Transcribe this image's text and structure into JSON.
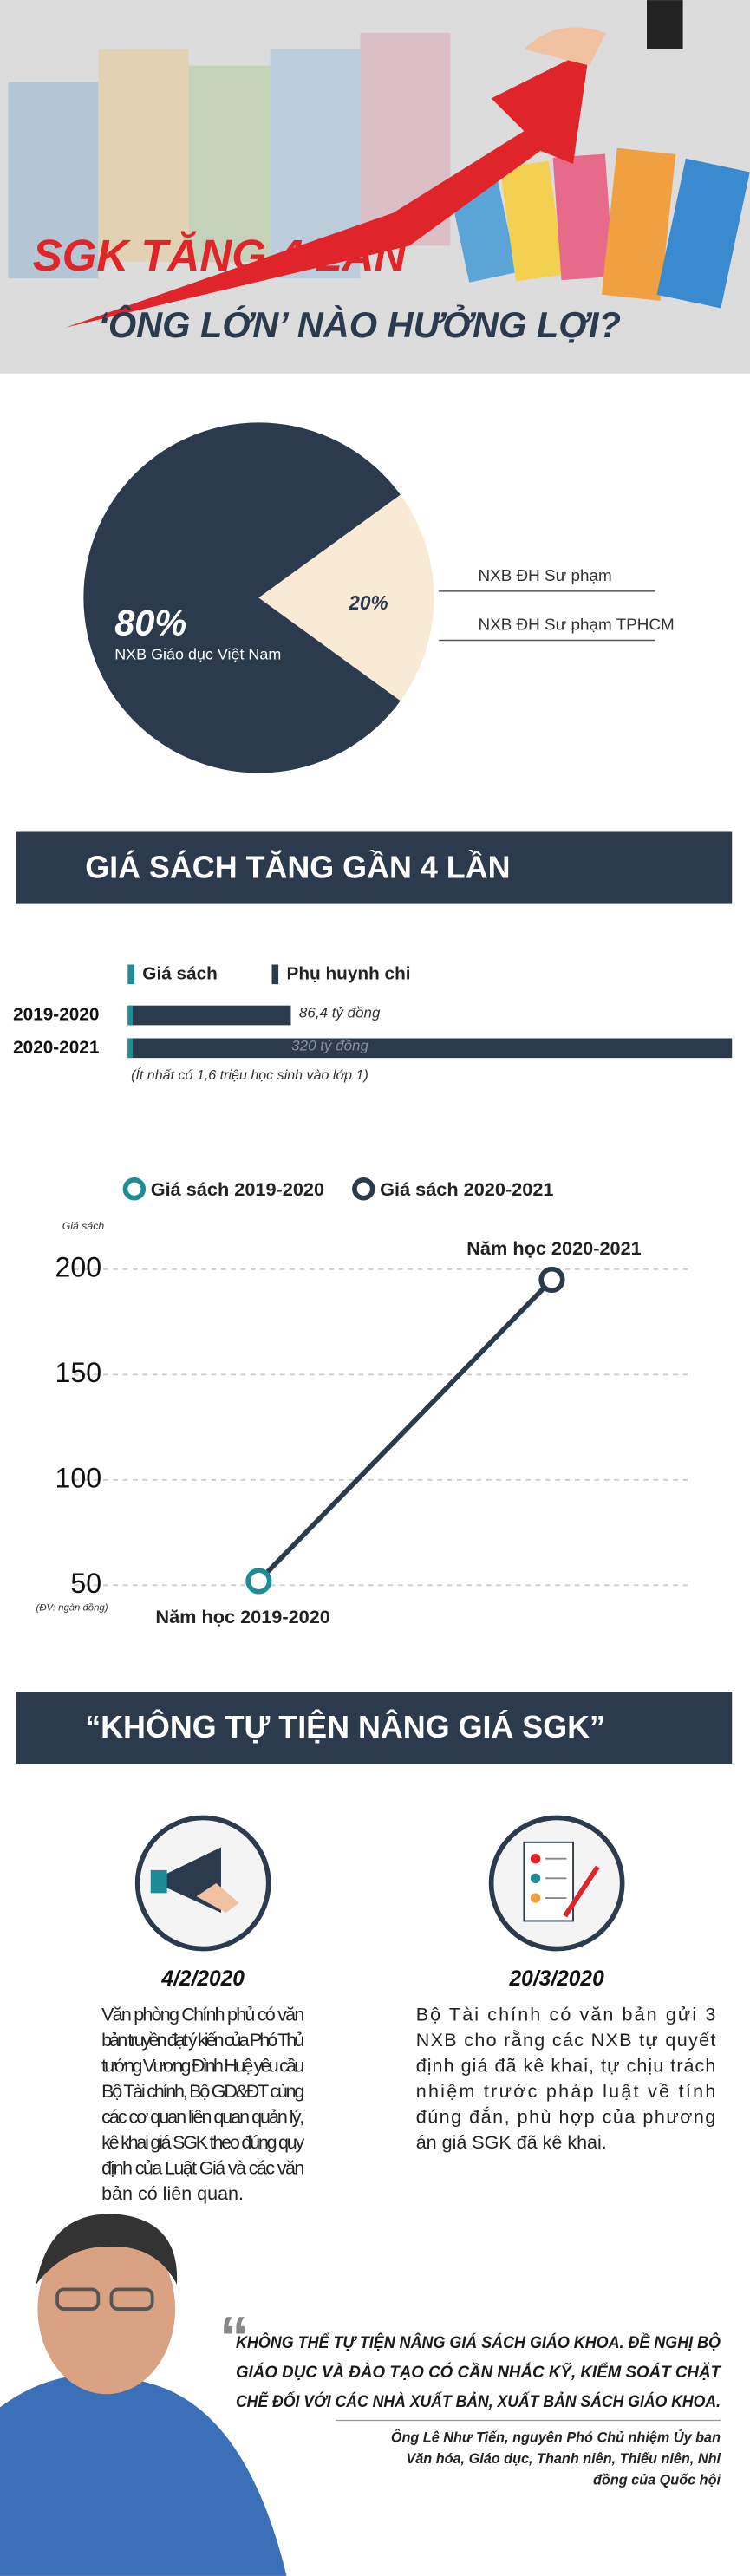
{
  "header": {
    "title": "SGK TĂNG 4 LẦN",
    "subtitle": "‘ÔNG LỚN’ NÀO HƯỞNG LỢI?"
  },
  "chart_data": [
    {
      "type": "pie",
      "values": [
        80,
        20
      ],
      "value_labels": [
        "80%",
        "20%"
      ],
      "categories": [
        "NXB Giáo dục Việt Nam",
        null
      ],
      "colors": [
        "#2c3a4e",
        "#f9ead6"
      ],
      "annotations": [
        "NXB ĐH Sư phạm",
        "NXB ĐH Sư phạm TPHCM"
      ]
    },
    {
      "type": "hbar",
      "title": "GIÁ SÁCH TĂNG GẦN 4 LẦN",
      "legend": [
        {
          "name": "Giá sách",
          "color": "#1e8c96"
        },
        {
          "name": "Phụ huynh chi",
          "color": "#2c3a4e"
        }
      ],
      "categories": [
        "2019-2020",
        "2020-2021"
      ],
      "values": [
        86.4,
        320
      ],
      "value_labels": [
        "86,4 tỷ đồng",
        "320 tỷ đồng"
      ],
      "color": "#2c3a4e",
      "xlim": [
        0,
        320
      ],
      "note": "(Ít nhất có 1,6 triệu học sinh vào lớp 1)"
    },
    {
      "type": "line",
      "legend": [
        {
          "name": "Giá sách 2019-2020",
          "color": "#1e8c96"
        },
        {
          "name": "Giá sách 2020-2021",
          "color": "#2c3a4e"
        }
      ],
      "ylabel": "Giá sách",
      "unit_note": "(ĐV: ngàn đồng)",
      "categories": [
        "Năm học 2019-2020",
        "Năm học 2020-2021"
      ],
      "values": [
        52,
        195
      ],
      "line_color": "#2c3a4e",
      "ylim": [
        50,
        200
      ],
      "yticks": [
        50,
        100,
        150,
        200
      ],
      "grid": true
    }
  ],
  "section2": {
    "title": "“KHÔNG TỰ TIỆN NÂNG GIÁ SGK”",
    "events": [
      {
        "date": "4/2/2020",
        "lines": [
          "Văn phòng Chính phủ có văn",
          "bản truyền đạt ý kiến của Phó Thủ",
          "tướng Vương Đình Huệ yêu cầu",
          "Bộ Tài chính, Bộ GD&ĐT cùng",
          "các cơ quan liên quan quản lý,",
          "kê khai giá SGK theo đúng quy",
          "định của Luật Giá và các văn",
          "bản có liên quan."
        ]
      },
      {
        "date": "20/3/2020",
        "lines": [
          "Bộ Tài chính có văn bản gửi 3",
          "NXB cho rằng các NXB tự quyết",
          "định giá đã kê khai, tự chịu trách",
          "nhiệm trước pháp luật về tính",
          "đúng đắn, phù hợp của phương",
          "án giá SGK đã kê khai."
        ]
      }
    ]
  },
  "quote": {
    "lines": [
      "KHÔNG THỂ TỰ TIỆN NÂNG GIÁ SÁCH GIÁO KHOA. ĐỀ NGHỊ BỘ",
      "GIÁO DỤC VÀ ĐÀO TẠO CÓ CẦN NHẮC KỸ, KIỂM SOÁT CHẶT",
      "CHẼ ĐỐI VỚI CÁC NHÀ XUẤT BẢN, XUẤT BẢN SÁCH GIÁO KHOA."
    ],
    "attribution": [
      "Ông Lê Như Tiến, nguyên Phó Chủ nhiệm Ủy ban",
      "Văn hóa, Giáo dục, Thanh niên, Thiếu niên, Nhi",
      "đồng của Quốc hội"
    ]
  }
}
